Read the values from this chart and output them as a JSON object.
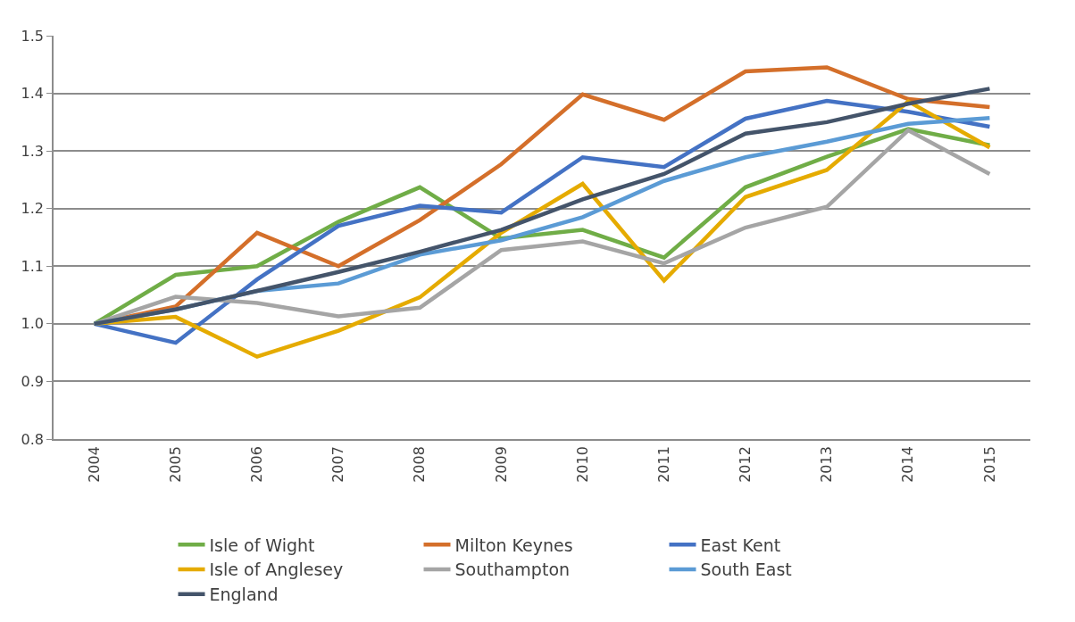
{
  "chart_data": {
    "type": "line",
    "categories": [
      "2004",
      "2005",
      "2006",
      "2007",
      "2008",
      "2009",
      "2010",
      "2011",
      "2012",
      "2013",
      "2014",
      "2015"
    ],
    "series": [
      {
        "name": "Isle of Wight",
        "color": "#70ad47",
        "values": [
          1.0,
          1.085,
          1.1,
          1.177,
          1.237,
          1.148,
          1.163,
          1.115,
          1.237,
          1.29,
          1.338,
          1.31
        ]
      },
      {
        "name": "Milton Keynes",
        "color": "#d46f2a",
        "values": [
          1.0,
          1.03,
          1.158,
          1.1,
          1.18,
          1.277,
          1.398,
          1.354,
          1.438,
          1.445,
          1.39,
          1.376
        ]
      },
      {
        "name": "East Kent",
        "color": "#4472c4",
        "values": [
          1.0,
          0.967,
          1.077,
          1.17,
          1.205,
          1.193,
          1.289,
          1.272,
          1.356,
          1.387,
          1.368,
          1.342
        ]
      },
      {
        "name": "Isle of Anglesey",
        "color": "#e5ab00",
        "values": [
          1.0,
          1.012,
          0.943,
          0.988,
          1.046,
          1.158,
          1.243,
          1.075,
          1.22,
          1.267,
          1.386,
          1.306
        ]
      },
      {
        "name": "Southampton",
        "color": "#a5a5a5",
        "values": [
          1.0,
          1.047,
          1.036,
          1.013,
          1.028,
          1.128,
          1.143,
          1.105,
          1.167,
          1.203,
          1.336,
          1.26
        ]
      },
      {
        "name": "South East",
        "color": "#5b9bd5",
        "values": [
          1.0,
          1.025,
          1.057,
          1.07,
          1.12,
          1.145,
          1.185,
          1.248,
          1.289,
          1.316,
          1.347,
          1.357
        ]
      },
      {
        "name": "England",
        "color": "#44546a",
        "values": [
          1.0,
          1.025,
          1.057,
          1.09,
          1.125,
          1.163,
          1.216,
          1.26,
          1.33,
          1.35,
          1.382,
          1.408
        ]
      }
    ],
    "ylim": [
      0.8,
      1.5
    ],
    "yticks": [
      {
        "value": 0.8,
        "label": "0.8"
      },
      {
        "value": 0.9,
        "label": "0.9"
      },
      {
        "value": 1.0,
        "label": "1.0"
      },
      {
        "value": 1.1,
        "label": "1.1"
      },
      {
        "value": 1.2,
        "label": "1.2"
      },
      {
        "value": 1.3,
        "label": "1.3"
      },
      {
        "value": 1.4,
        "label": "1.4"
      },
      {
        "value": 1.5,
        "label": "1.5"
      }
    ],
    "grid": "y",
    "legend": "bottom",
    "marker": "none",
    "line_style": "solid"
  }
}
